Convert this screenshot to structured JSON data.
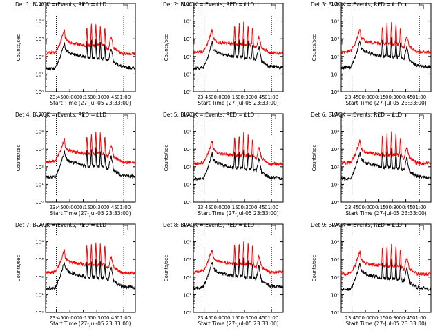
{
  "colors": {
    "events": "#000000",
    "lld": "#ff0000",
    "background": "#ffffff"
  },
  "chart_data": {
    "type": "line",
    "layout": "3x3 grid of panels",
    "y_scale": "log",
    "ylim": [
      1,
      100000
    ],
    "y_tick_labels": [
      "10⁰",
      "10¹",
      "10²",
      "10³",
      "10⁴",
      "10⁵"
    ],
    "ylabel": "Counts/sec",
    "xlabel": "Start Time (27-Jul-05 23:33:00)",
    "x_tick_labels": [
      "23:45",
      "00:00",
      "00:15",
      "00:30",
      "00:45",
      "01:00"
    ],
    "x_unit": "minutes after 23:33:00",
    "xlim": [
      0,
      100
    ],
    "x_ticks": [
      12,
      27,
      42,
      57,
      72,
      87
    ],
    "dotted_markers_x": [
      12,
      87
    ],
    "series_names": [
      "Events",
      "LLD"
    ],
    "panels": [
      {
        "title": "Det 1: BLACK = Events, RED = LLD"
      },
      {
        "title": "Det 2: BLACK = Events, RED = LLD"
      },
      {
        "title": "Det 3: BLACK = Events, RED = LLD"
      },
      {
        "title": "Det 4: BLACK = Events, RED = LLD"
      },
      {
        "title": "Det 5: BLACK = Events, RED = LLD"
      },
      {
        "title": "Det 6: BLACK = Events, RED = LLD"
      },
      {
        "title": "Det 7: BLACK = Events, RED = LLD"
      },
      {
        "title": "Det 8: BLACK = Events, RED = LLD"
      },
      {
        "title": "Det 9: BLACK = Events, RED = LLD"
      }
    ],
    "lld_series": [
      [
        0,
        170
      ],
      [
        11,
        200
      ],
      [
        16,
        600
      ],
      [
        21,
        3500
      ],
      [
        22,
        1200
      ],
      [
        27,
        700
      ],
      [
        45,
        500
      ],
      [
        46,
        8000
      ],
      [
        47,
        500
      ],
      [
        50,
        500
      ],
      [
        51,
        9000
      ],
      [
        52,
        500
      ],
      [
        55,
        500
      ],
      [
        56,
        9000
      ],
      [
        57,
        500
      ],
      [
        60,
        500
      ],
      [
        61,
        9000
      ],
      [
        62,
        500
      ],
      [
        65,
        500
      ],
      [
        66,
        7000
      ],
      [
        67,
        450
      ],
      [
        70,
        300
      ],
      [
        73,
        1500
      ],
      [
        76,
        350
      ],
      [
        85,
        170
      ],
      [
        100,
        170
      ]
    ],
    "events_series": [
      [
        0,
        22
      ],
      [
        11,
        25
      ],
      [
        16,
        100
      ],
      [
        21,
        700
      ],
      [
        22,
        300
      ],
      [
        27,
        180
      ],
      [
        45,
        100
      ],
      [
        46,
        1000
      ],
      [
        47,
        100
      ],
      [
        50,
        100
      ],
      [
        51,
        1100
      ],
      [
        52,
        100
      ],
      [
        55,
        100
      ],
      [
        56,
        1100
      ],
      [
        57,
        90
      ],
      [
        60,
        90
      ],
      [
        61,
        1000
      ],
      [
        62,
        90
      ],
      [
        65,
        90
      ],
      [
        66,
        700
      ],
      [
        67,
        80
      ],
      [
        70,
        70
      ],
      [
        73,
        400
      ],
      [
        76,
        55
      ],
      [
        85,
        30
      ],
      [
        100,
        25
      ]
    ]
  }
}
